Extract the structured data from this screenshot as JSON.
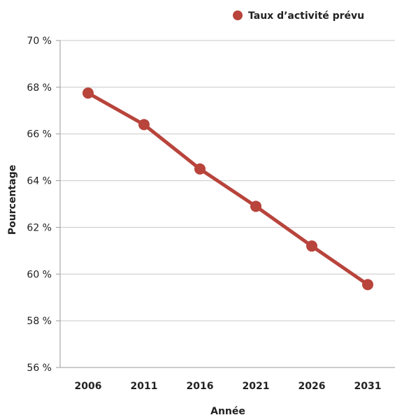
{
  "chart_data": {
    "type": "line",
    "title": "",
    "xlabel": "Année",
    "ylabel": "Pourcentage",
    "categories": [
      "2006",
      "2011",
      "2016",
      "2021",
      "2026",
      "2031"
    ],
    "series": [
      {
        "name": "Taux d’activité prévu",
        "values": [
          67.75,
          66.4,
          64.5,
          62.9,
          61.2,
          59.55
        ],
        "color": "#b8443c"
      }
    ],
    "ylim": [
      56,
      70
    ],
    "yticks": [
      56,
      58,
      60,
      62,
      64,
      66,
      68,
      70
    ],
    "ytick_labels": [
      "56 %",
      "58 %",
      "60 %",
      "62 %",
      "64 %",
      "66 %",
      "68 %",
      "70 %"
    ],
    "grid": true,
    "legend_position": "top-right",
    "colors": {
      "series": "#b8443c",
      "grid": "#c8c8c8",
      "axis": "#9a9a9a",
      "text": "#222222"
    }
  }
}
